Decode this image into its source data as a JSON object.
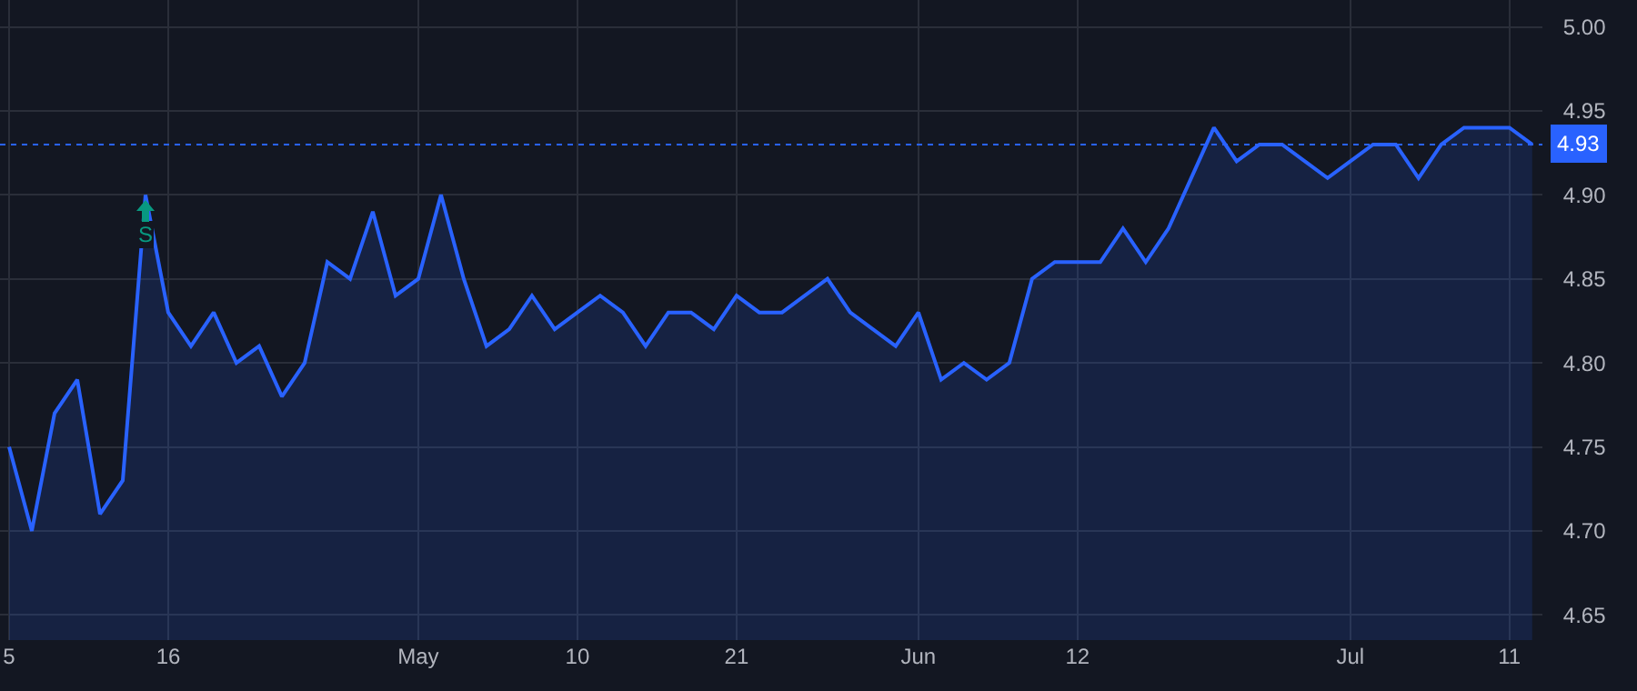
{
  "chart_data": {
    "type": "area",
    "categories": [
      "5",
      null,
      null,
      null,
      null,
      null,
      null,
      "16",
      null,
      null,
      null,
      null,
      null,
      null,
      null,
      null,
      null,
      null,
      "May",
      null,
      null,
      null,
      null,
      null,
      null,
      "10",
      null,
      null,
      null,
      null,
      null,
      null,
      "21",
      null,
      null,
      null,
      null,
      null,
      null,
      null,
      "Jun",
      null,
      null,
      null,
      null,
      null,
      null,
      "12",
      null,
      null,
      null,
      null,
      null,
      null,
      null,
      null,
      null,
      null,
      null,
      "Jul",
      null,
      null,
      null,
      null,
      null,
      null,
      "11",
      null
    ],
    "series": [
      {
        "color": "#2962ff",
        "values": [
          4.75,
          4.7,
          4.77,
          4.79,
          4.71,
          4.73,
          4.9,
          4.83,
          4.81,
          4.83,
          4.8,
          4.81,
          4.78,
          4.8,
          4.86,
          4.85,
          4.89,
          4.84,
          4.85,
          4.9,
          4.85,
          4.81,
          4.82,
          4.84,
          4.82,
          4.83,
          4.84,
          4.83,
          4.81,
          4.83,
          4.83,
          4.82,
          4.84,
          4.83,
          4.83,
          4.84,
          4.85,
          4.83,
          4.82,
          4.81,
          4.83,
          4.79,
          4.8,
          4.79,
          4.8,
          4.85,
          4.86,
          4.86,
          4.86,
          4.88,
          4.86,
          4.88,
          4.91,
          4.94,
          4.92,
          4.93,
          4.93,
          4.92,
          4.91,
          4.92,
          4.93,
          4.93,
          4.91,
          4.93,
          4.94,
          4.94,
          4.94,
          4.93
        ]
      }
    ],
    "ylim": [
      4.635,
      5.016
    ],
    "yticks": [
      {
        "value": 4.65,
        "label": "4.65"
      },
      {
        "value": 4.7,
        "label": "4.70"
      },
      {
        "value": 4.75,
        "label": "4.75"
      },
      {
        "value": 4.8,
        "label": "4.80"
      },
      {
        "value": 4.85,
        "label": "4.85"
      },
      {
        "value": 4.9,
        "label": "4.90"
      },
      {
        "value": 4.95,
        "label": "4.95"
      },
      {
        "value": 5.0,
        "label": "5.00"
      }
    ],
    "ref_lines": [
      {
        "axis": "y",
        "value": 4.93,
        "label": "4.93",
        "color": "#2962ff",
        "line_style": "dotted"
      }
    ],
    "annotations": [
      {
        "text": "S",
        "y": 4.89
      }
    ],
    "grid": true,
    "marker": "none",
    "line_style": "solid"
  }
}
